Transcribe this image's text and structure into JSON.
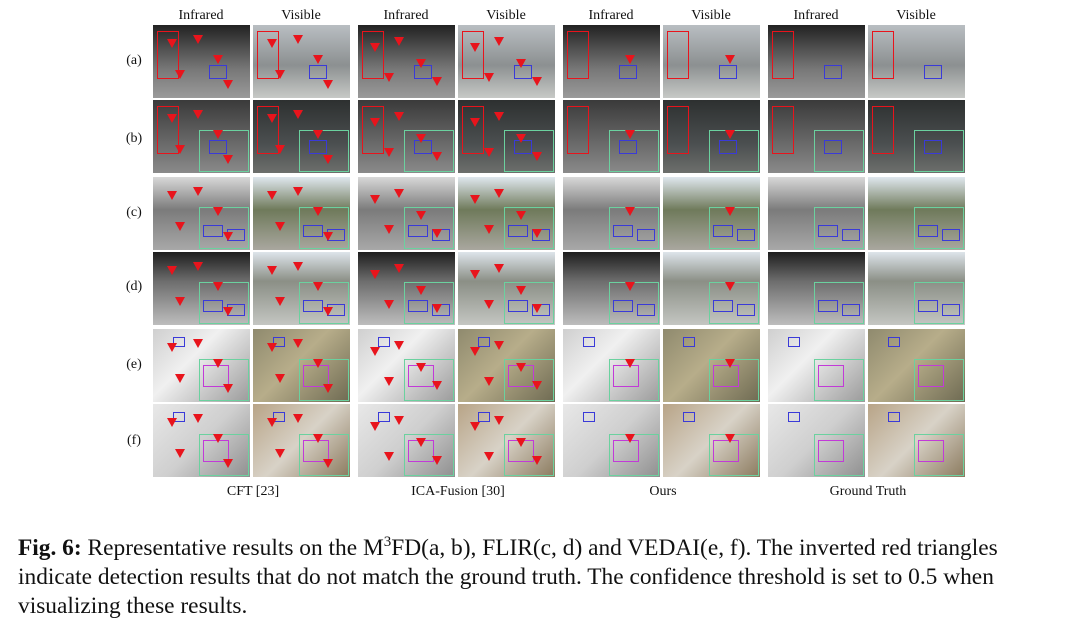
{
  "column_headers": [
    "Infrared",
    "Visible",
    "Infrared",
    "Visible",
    "Infrared",
    "Visible",
    "Infrared",
    "Visible"
  ],
  "row_labels": [
    "(a)",
    "(b)",
    "(c)",
    "(d)",
    "(e)",
    "(f)"
  ],
  "method_labels": [
    "CFT [23]",
    "ICA-Fusion [30]",
    "Ours",
    "Ground Truth"
  ],
  "caption": {
    "label": "Fig. 6:",
    "before_sup": "Representative results on the M",
    "sup": "3",
    "after_sup": "FD(a, b), FLIR(c, d) and VEDAI(e, f). The inverted red triangles indicate detection results that do not match the ground truth. The confidence threshold is set to 0.5 when visualizing these results."
  },
  "colors": {
    "miss_marker": "#e8141c",
    "people_box": "#e8141c",
    "car_box": "#3a3ad8",
    "truck_box": "#c23ad8",
    "inset_border": "#6bd19f"
  },
  "icons": {
    "miss_marker": "inverted-red-triangle-icon"
  }
}
